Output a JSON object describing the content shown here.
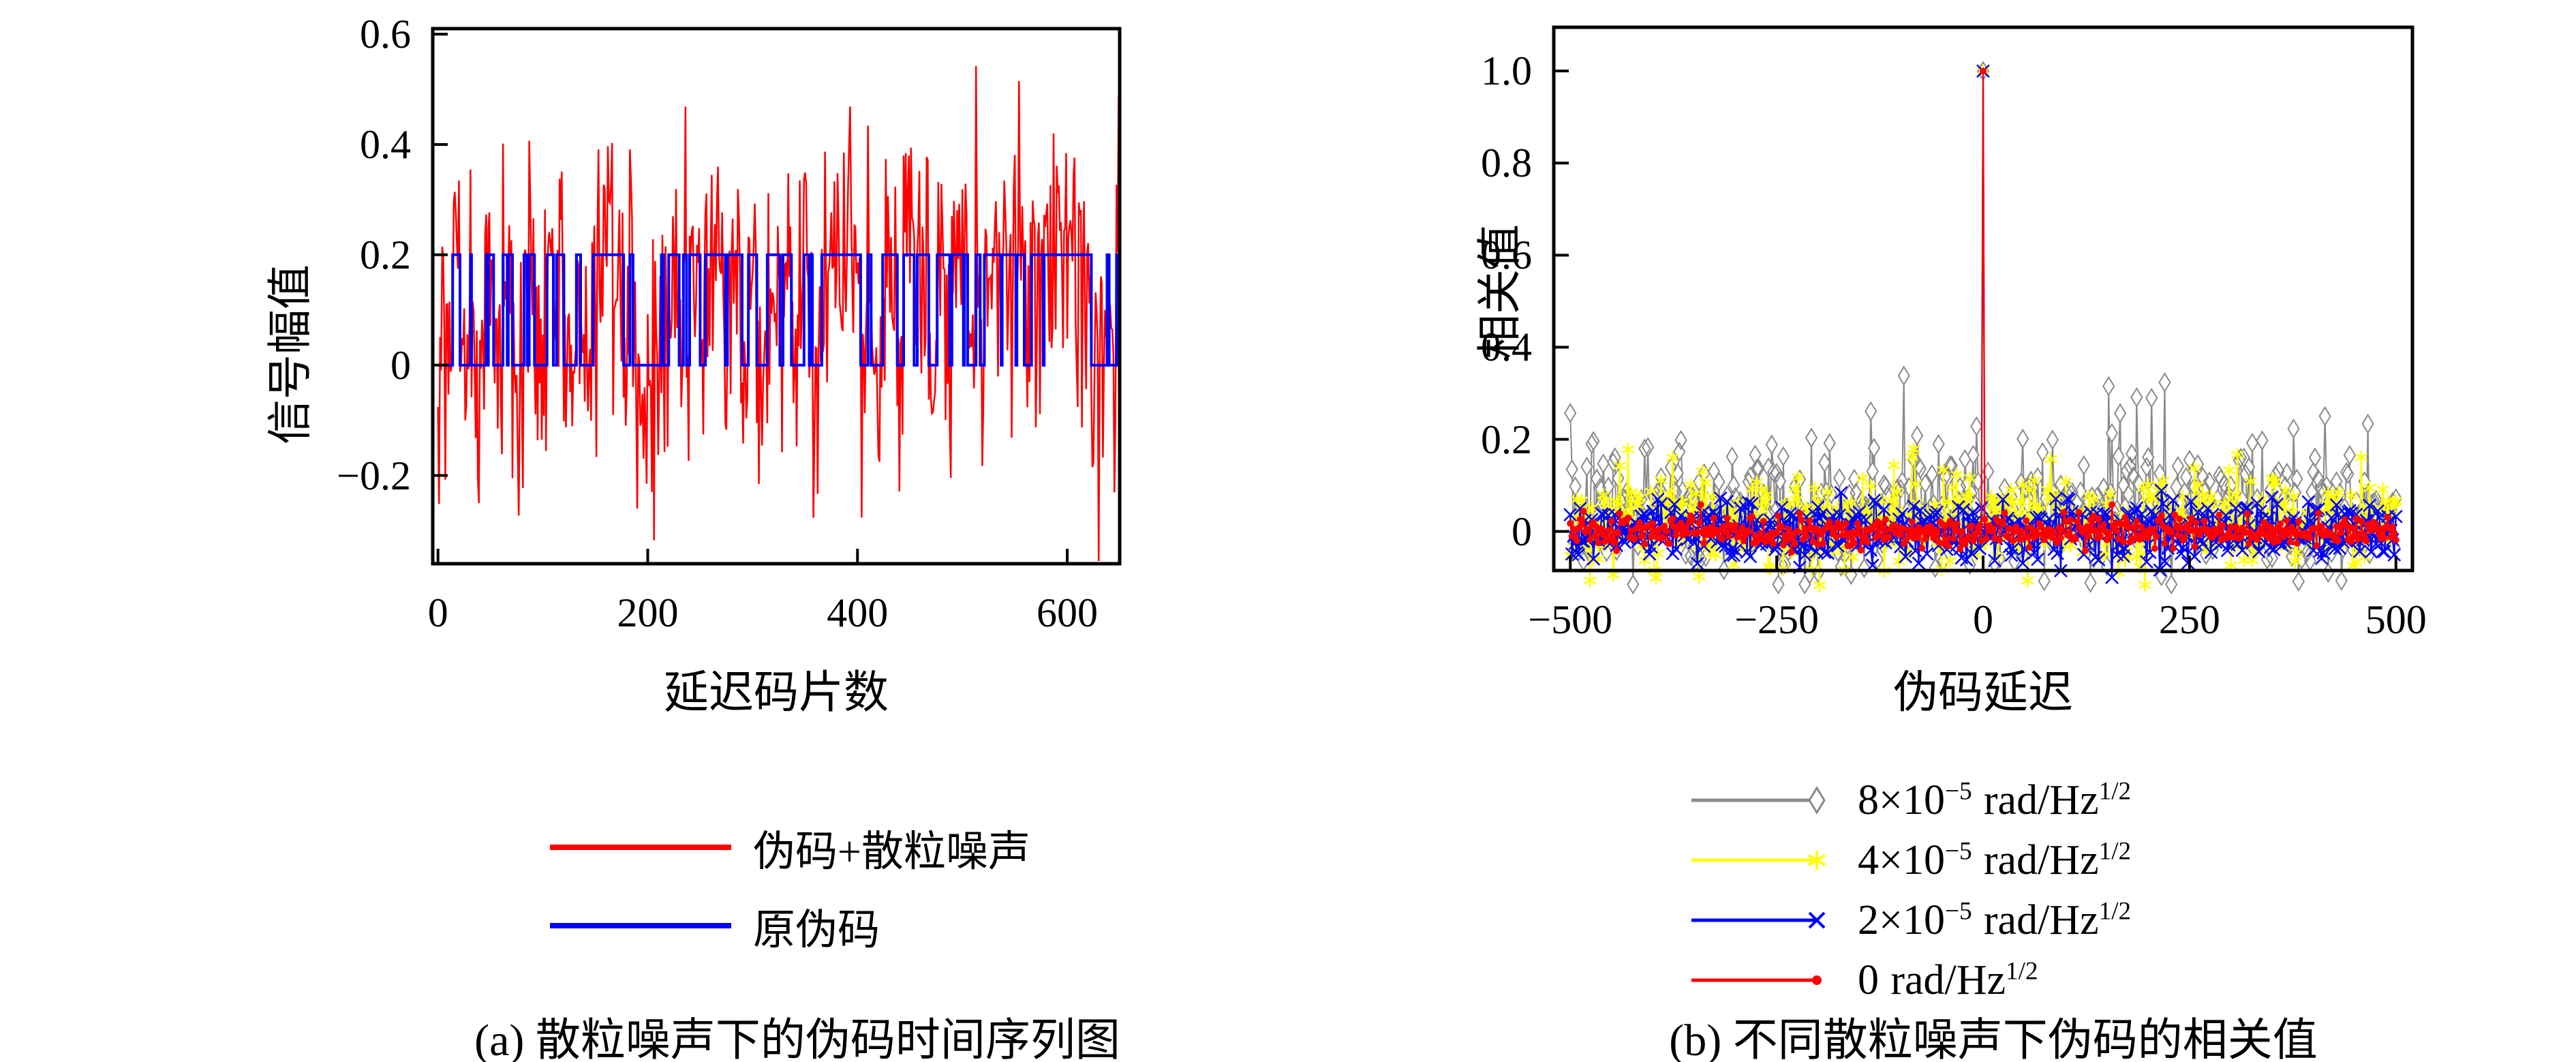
{
  "figure": {
    "background": "#ffffff",
    "axis_color": "#000000",
    "panels": [
      {
        "id": "a",
        "caption": "(a) 散粒噪声下的伪码时间序列图"
      },
      {
        "id": "b",
        "caption": "(b) 不同散粒噪声下伪码的相关值"
      }
    ]
  },
  "chart_data": [
    {
      "type": "line",
      "panel": "a",
      "title": "",
      "caption": "(a) 散粒噪声下的伪码时间序列图",
      "xlabel": "延迟码片数",
      "ylabel": "信号幅值",
      "xlim": [
        -5,
        650
      ],
      "ylim": [
        -0.36,
        0.61
      ],
      "xticks": [
        0,
        200,
        400,
        600
      ],
      "xtick_labels": [
        "0",
        "200",
        "400",
        "600"
      ],
      "yticks": [
        0.6,
        0.4,
        0.2,
        0,
        -0.2
      ],
      "ytick_labels": [
        "0.6",
        "0.4",
        "0.2",
        "0",
        "−0.2"
      ],
      "grid": false,
      "n_chips": 650,
      "series": [
        {
          "name": "伪码+散粒噪声",
          "color": "#ff0000",
          "kind": "pn_plus_noise",
          "noise_sigma": 0.115,
          "observed_range": [
            -0.355,
            0.565
          ],
          "clamp": [
            -0.355,
            0.565
          ],
          "line_width": 2.5,
          "seed": 1234
        },
        {
          "name": "原伪码",
          "color": "#0000ff",
          "kind": "pn_code",
          "levels": [
            0,
            0.2
          ],
          "mean_run_chips": 8,
          "max_run_chips": 45,
          "line_width": 4,
          "seed": 99
        }
      ],
      "legend": [
        {
          "label": "伪码+散粒噪声",
          "color": "#ff0000"
        },
        {
          "label": "原伪码",
          "color": "#0000ff"
        }
      ],
      "legend_position": "below"
    },
    {
      "type": "line",
      "panel": "b",
      "title": "",
      "caption": "(b) 不同散粒噪声下伪码的相关值",
      "xlabel": "伪码延迟",
      "ylabel": "相关值",
      "xlim": [
        -520,
        520
      ],
      "ylim": [
        -0.085,
        1.095
      ],
      "xticks": [
        -500,
        -250,
        0,
        250,
        500
      ],
      "xtick_labels": [
        "−500",
        "−250",
        "0",
        "250",
        "500"
      ],
      "yticks": [
        1.0,
        0.8,
        0.6,
        0.4,
        0.2,
        0
      ],
      "ytick_labels": [
        "1.0",
        "0.8",
        "0.6",
        "0.4",
        "0.2",
        "0"
      ],
      "grid": false,
      "x_step": 2,
      "peak": {
        "x": 0,
        "y": 1.0
      },
      "series": [
        {
          "name": "8×10^−5 rad/Hz^1/2",
          "color": "#8a8a8a",
          "marker": "diamond",
          "marker_w": 8,
          "marker_h": 13,
          "line_width": 2,
          "noise_mean": 0.05,
          "noise_sigma": 0.075,
          "spike_prob": 0.05,
          "spike_min": 0.05,
          "spike_max": 0.22,
          "clamp": [
            -0.115,
            0.43
          ],
          "peak_value": 1.0,
          "noise_floor_max": 0.42,
          "seed": 7
        },
        {
          "name": "4×10^−5 rad/Hz^1/2",
          "color": "#ffff00",
          "marker": "asterisk",
          "marker_size": 10,
          "line_width": 2.2,
          "noise_mean": 0.015,
          "noise_sigma": 0.05,
          "spike_prob": 0.03,
          "spike_min": 0.04,
          "spike_max": 0.12,
          "clamp": [
            -0.125,
            0.225
          ],
          "peak_value": 1.0,
          "noise_floor_max": 0.22,
          "seed": 8
        },
        {
          "name": "2×10^−5 rad/Hz^1/2",
          "color": "#0000ff",
          "marker": "x",
          "marker_size": 9,
          "line_width": 2.2,
          "noise_mean": 0,
          "noise_sigma": 0.034,
          "spike_prob": 0.02,
          "spike_min": 0.02,
          "spike_max": 0.07,
          "clamp": [
            -0.1,
            0.155
          ],
          "peak_value": 1.0,
          "noise_floor_max": 0.15,
          "seed": 9
        },
        {
          "name": "0 rad/Hz^1/2",
          "color": "#ff0000",
          "marker": "dot",
          "marker_size": 5,
          "line_width": 2,
          "noise_mean": 0,
          "noise_sigma": 0.017,
          "spike_prob": 0,
          "spike_min": 0,
          "spike_max": 0,
          "clamp": [
            -0.058,
            0.058
          ],
          "peak_value": 1.0,
          "noise_floor_max": 0.06,
          "seed": 10
        }
      ],
      "legend": [
        {
          "coef": "8×10",
          "exp": "−5",
          "unit": "rad/Hz",
          "unit_exp": "1/2",
          "color": "#8a8a8a",
          "marker": "diamond"
        },
        {
          "coef": "4×10",
          "exp": "−5",
          "unit": "rad/Hz",
          "unit_exp": "1/2",
          "color": "#ffff00",
          "marker": "asterisk"
        },
        {
          "coef": "2×10",
          "exp": "−5",
          "unit": "rad/Hz",
          "unit_exp": "1/2",
          "color": "#0000ff",
          "marker": "x"
        },
        {
          "coef": "0",
          "exp": "",
          "unit": "rad/Hz",
          "unit_exp": "1/2",
          "color": "#ff0000",
          "marker": "dot"
        }
      ],
      "legend_position": "below"
    }
  ]
}
